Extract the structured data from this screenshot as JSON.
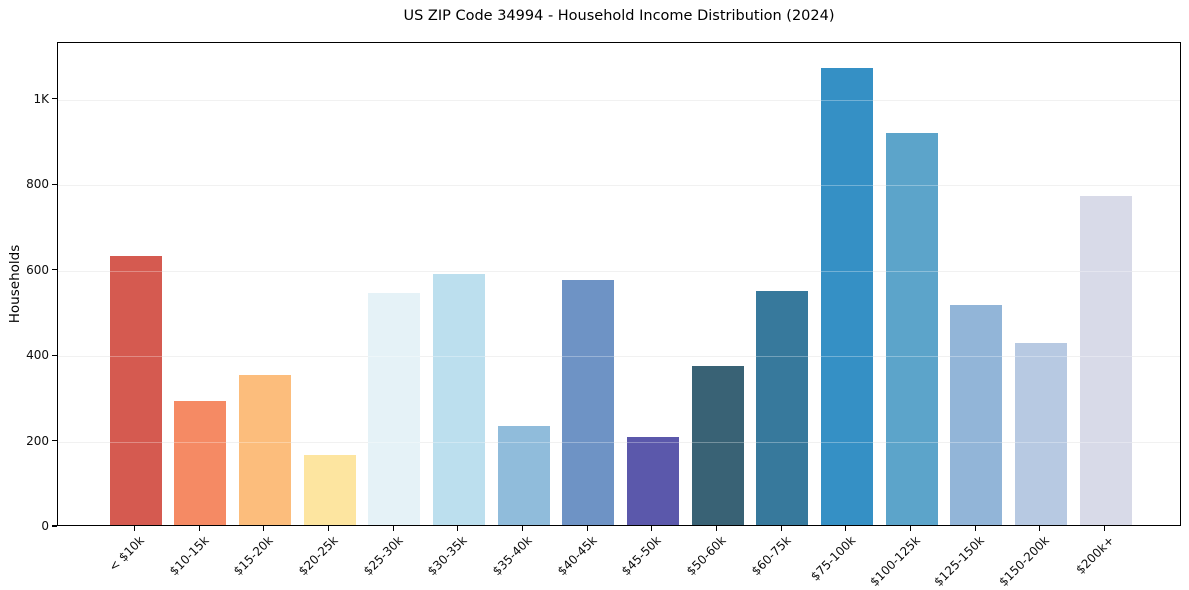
{
  "chart_data": {
    "type": "bar",
    "title": "US ZIP Code 34994 - Household Income Distribution (2024)",
    "xlabel": "",
    "ylabel": "Households",
    "categories": [
      "< $10k",
      "$10-15k",
      "$15-20k",
      "$20-25k",
      "$25-30k",
      "$30-35k",
      "$35-40k",
      "$40-45k",
      "$45-50k",
      "$50-60k",
      "$60-75k",
      "$75-100k",
      "$100-125k",
      "$125-150k",
      "$150-200k",
      "$200k+"
    ],
    "values": [
      630,
      290,
      352,
      163,
      543,
      588,
      232,
      573,
      207,
      372,
      547,
      1070,
      918,
      514,
      427,
      770
    ],
    "bar_colors": [
      "#d55a50",
      "#f58a64",
      "#fcbd7c",
      "#fde5a0",
      "#e5f2f7",
      "#bcdfee",
      "#90bcdb",
      "#6e93c5",
      "#5b58ab",
      "#396275",
      "#37799c",
      "#3590c5",
      "#5ca4ca",
      "#92b5d8",
      "#b7c9e2",
      "#d8dae8"
    ],
    "ylim": [
      0,
      1133
    ],
    "yticks": [
      {
        "value": 0,
        "label": "0"
      },
      {
        "value": 200,
        "label": "200"
      },
      {
        "value": 400,
        "label": "400"
      },
      {
        "value": 600,
        "label": "600"
      },
      {
        "value": 800,
        "label": "800"
      },
      {
        "value": 1000,
        "label": "1K"
      }
    ],
    "grid": "horizontal",
    "grid_color": "#ebebeb",
    "axis_color": "#000000",
    "background_color": "#ffffff",
    "legend": "none",
    "xtick_rotation": 45
  }
}
